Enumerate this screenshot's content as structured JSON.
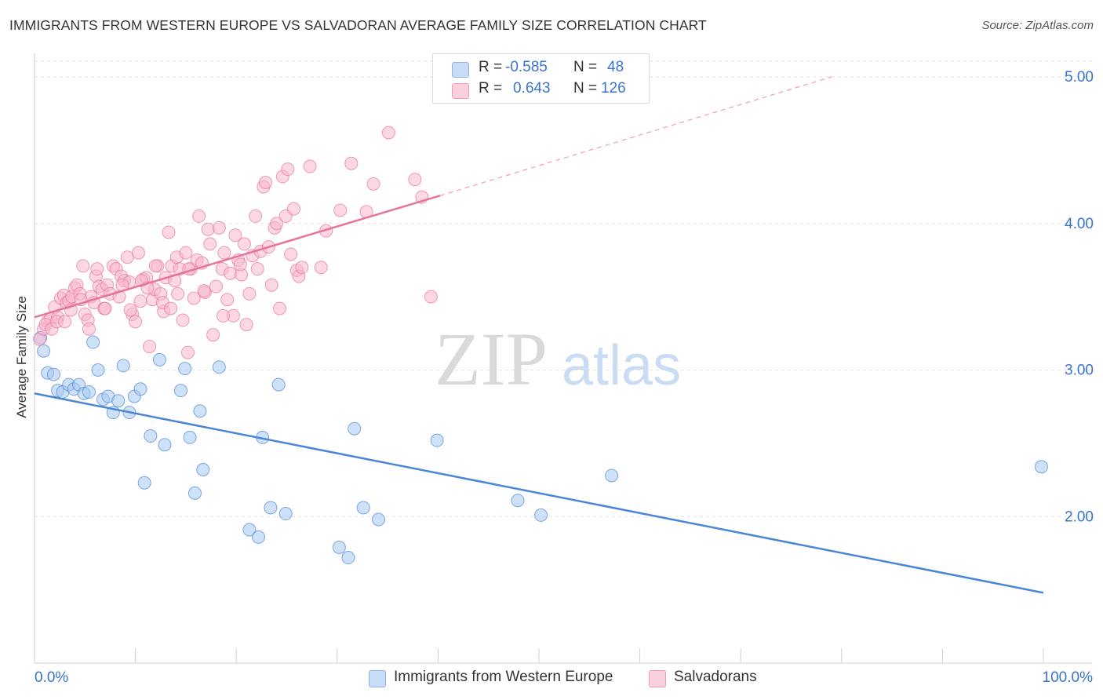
{
  "title": "IMMIGRANTS FROM WESTERN EUROPE VS SALVADORAN AVERAGE FAMILY SIZE CORRELATION CHART",
  "source": "Source: ZipAtlas.com",
  "watermark": {
    "zip": "ZIP",
    "atlas": "atlas"
  },
  "legend": {
    "rows": [
      {
        "r_label": "R =",
        "r_value": "-0.585",
        "n_label": "N =",
        "n_value": "48",
        "color": "#a8c8f0"
      },
      {
        "r_label": "R =",
        "r_value": "0.643",
        "n_label": "N =",
        "n_value": "126",
        "color": "#f7b8cc"
      }
    ]
  },
  "bottom_legend": [
    {
      "label": "Immigrants from Western Europe",
      "color": "#a8c8f0"
    },
    {
      "label": "Salvadorans",
      "color": "#f7b8cc"
    }
  ],
  "chart_data": {
    "type": "scatter",
    "title": "IMMIGRANTS FROM WESTERN EUROPE VS SALVADORAN AVERAGE FAMILY SIZE CORRELATION CHART",
    "xlabel": "",
    "ylabel": "Average Family Size",
    "xlim": [
      0,
      100
    ],
    "ylim": [
      1.0,
      5.15
    ],
    "x_tick_labels": [
      "0.0%",
      "100.0%"
    ],
    "y_ticks": [
      2.0,
      3.0,
      4.0,
      5.0
    ],
    "y_tick_labels": [
      "2.00",
      "3.00",
      "4.00",
      "5.00"
    ],
    "grid": true,
    "legend_position": "top-center",
    "series": [
      {
        "name": "Immigrants from Western Europe",
        "color": "#4a86d8",
        "fill": "#a8c8f0",
        "trend": {
          "x": [
            0,
            100
          ],
          "y": [
            2.84,
            1.48
          ]
        },
        "points": [
          [
            0.6,
            3.22
          ],
          [
            0.9,
            3.13
          ],
          [
            1.3,
            2.98
          ],
          [
            1.9,
            2.97
          ],
          [
            2.3,
            2.86
          ],
          [
            2.8,
            2.85
          ],
          [
            3.4,
            2.9
          ],
          [
            3.9,
            2.87
          ],
          [
            4.4,
            2.9
          ],
          [
            4.9,
            2.84
          ],
          [
            5.4,
            2.85
          ],
          [
            5.8,
            3.19
          ],
          [
            6.3,
            3.0
          ],
          [
            6.8,
            2.8
          ],
          [
            7.3,
            2.82
          ],
          [
            7.8,
            2.71
          ],
          [
            8.3,
            2.79
          ],
          [
            8.8,
            3.03
          ],
          [
            9.4,
            2.71
          ],
          [
            9.9,
            2.82
          ],
          [
            10.5,
            2.87
          ],
          [
            10.9,
            2.23
          ],
          [
            11.5,
            2.55
          ],
          [
            12.4,
            3.07
          ],
          [
            12.9,
            2.49
          ],
          [
            14.5,
            2.86
          ],
          [
            14.9,
            3.01
          ],
          [
            15.4,
            2.54
          ],
          [
            15.9,
            2.16
          ],
          [
            16.4,
            2.72
          ],
          [
            16.7,
            2.32
          ],
          [
            18.3,
            3.02
          ],
          [
            21.3,
            1.91
          ],
          [
            22.2,
            1.86
          ],
          [
            22.6,
            2.54
          ],
          [
            23.4,
            2.06
          ],
          [
            24.2,
            2.9
          ],
          [
            24.9,
            2.02
          ],
          [
            30.2,
            1.79
          ],
          [
            31.1,
            1.72
          ],
          [
            31.7,
            2.6
          ],
          [
            32.6,
            2.06
          ],
          [
            34.1,
            1.98
          ],
          [
            39.9,
            2.52
          ],
          [
            47.9,
            2.11
          ],
          [
            50.2,
            2.01
          ],
          [
            57.2,
            2.28
          ],
          [
            99.8,
            2.34
          ]
        ]
      },
      {
        "name": "Salvadorans",
        "color": "#e8739a",
        "fill": "#f7b8cc",
        "trend": {
          "x": [
            0,
            40.2
          ],
          "y": [
            3.36,
            4.19
          ]
        },
        "trend_extension": {
          "x": [
            40.2,
            79.0
          ],
          "y": [
            4.19,
            5.0
          ]
        },
        "points": [
          [
            0.5,
            3.21
          ],
          [
            0.9,
            3.28
          ],
          [
            1.3,
            3.33
          ],
          [
            1.6,
            3.35
          ],
          [
            2.0,
            3.43
          ],
          [
            2.3,
            3.36
          ],
          [
            2.6,
            3.49
          ],
          [
            2.9,
            3.51
          ],
          [
            3.2,
            3.46
          ],
          [
            3.4,
            3.47
          ],
          [
            3.7,
            3.5
          ],
          [
            4.0,
            3.56
          ],
          [
            4.2,
            3.58
          ],
          [
            4.5,
            3.52
          ],
          [
            4.8,
            3.71
          ],
          [
            5.0,
            3.38
          ],
          [
            5.3,
            3.34
          ],
          [
            5.6,
            3.5
          ],
          [
            5.9,
            3.46
          ],
          [
            6.1,
            3.64
          ],
          [
            6.4,
            3.57
          ],
          [
            6.7,
            3.55
          ],
          [
            6.9,
            3.42
          ],
          [
            7.2,
            3.58
          ],
          [
            7.5,
            3.52
          ],
          [
            7.8,
            3.71
          ],
          [
            8.1,
            3.69
          ],
          [
            8.4,
            3.5
          ],
          [
            8.6,
            3.64
          ],
          [
            8.9,
            3.61
          ],
          [
            9.2,
            3.77
          ],
          [
            9.4,
            3.6
          ],
          [
            9.7,
            3.38
          ],
          [
            10.0,
            3.33
          ],
          [
            10.3,
            3.8
          ],
          [
            10.5,
            3.47
          ],
          [
            10.8,
            3.62
          ],
          [
            11.1,
            3.63
          ],
          [
            11.4,
            3.16
          ],
          [
            11.7,
            3.48
          ],
          [
            11.9,
            3.55
          ],
          [
            12.2,
            3.71
          ],
          [
            12.5,
            3.52
          ],
          [
            12.8,
            3.4
          ],
          [
            13.0,
            3.63
          ],
          [
            13.3,
            3.94
          ],
          [
            13.6,
            3.71
          ],
          [
            13.9,
            3.61
          ],
          [
            14.1,
            3.77
          ],
          [
            14.4,
            3.69
          ],
          [
            14.7,
            3.34
          ],
          [
            15.0,
            3.8
          ],
          [
            15.2,
            3.12
          ],
          [
            15.5,
            3.69
          ],
          [
            15.8,
            3.49
          ],
          [
            16.1,
            3.75
          ],
          [
            16.3,
            4.05
          ],
          [
            16.6,
            3.73
          ],
          [
            16.9,
            3.53
          ],
          [
            17.2,
            3.96
          ],
          [
            17.4,
            3.86
          ],
          [
            17.7,
            3.24
          ],
          [
            18.0,
            3.57
          ],
          [
            18.3,
            3.97
          ],
          [
            18.6,
            3.69
          ],
          [
            18.8,
            3.8
          ],
          [
            19.1,
            3.48
          ],
          [
            19.4,
            3.66
          ],
          [
            19.7,
            3.37
          ],
          [
            19.9,
            3.92
          ],
          [
            20.2,
            3.75
          ],
          [
            20.5,
            3.65
          ],
          [
            20.8,
            3.86
          ],
          [
            21.0,
            3.31
          ],
          [
            21.3,
            3.52
          ],
          [
            21.6,
            3.78
          ],
          [
            21.9,
            4.05
          ],
          [
            22.1,
            3.69
          ],
          [
            22.4,
            3.81
          ],
          [
            22.7,
            4.25
          ],
          [
            22.9,
            4.28
          ],
          [
            23.2,
            3.84
          ],
          [
            23.5,
            3.58
          ],
          [
            23.8,
            3.97
          ],
          [
            24.0,
            4.0
          ],
          [
            24.3,
            3.42
          ],
          [
            24.6,
            4.32
          ],
          [
            24.9,
            4.05
          ],
          [
            25.1,
            4.37
          ],
          [
            25.4,
            3.79
          ],
          [
            25.7,
            4.1
          ],
          [
            26.0,
            3.68
          ],
          [
            26.2,
            3.64
          ],
          [
            26.5,
            3.7
          ],
          [
            27.3,
            4.39
          ],
          [
            28.4,
            3.7
          ],
          [
            28.9,
            3.95
          ],
          [
            30.3,
            4.09
          ],
          [
            31.4,
            4.41
          ],
          [
            32.9,
            4.08
          ],
          [
            33.6,
            4.27
          ],
          [
            35.1,
            4.62
          ],
          [
            37.7,
            4.3
          ],
          [
            38.4,
            4.18
          ],
          [
            39.3,
            3.5
          ],
          [
            1.1,
            3.31
          ],
          [
            1.7,
            3.28
          ],
          [
            2.2,
            3.33
          ],
          [
            3.0,
            3.33
          ],
          [
            3.6,
            3.41
          ],
          [
            4.6,
            3.48
          ],
          [
            5.4,
            3.28
          ],
          [
            6.2,
            3.69
          ],
          [
            7.0,
            3.42
          ],
          [
            8.7,
            3.58
          ],
          [
            9.5,
            3.41
          ],
          [
            10.6,
            3.61
          ],
          [
            11.2,
            3.56
          ],
          [
            12.0,
            3.71
          ],
          [
            12.7,
            3.46
          ],
          [
            13.5,
            3.42
          ],
          [
            14.2,
            3.52
          ],
          [
            15.3,
            3.69
          ],
          [
            16.8,
            3.54
          ],
          [
            18.7,
            3.37
          ],
          [
            20.4,
            3.72
          ]
        ]
      }
    ]
  }
}
